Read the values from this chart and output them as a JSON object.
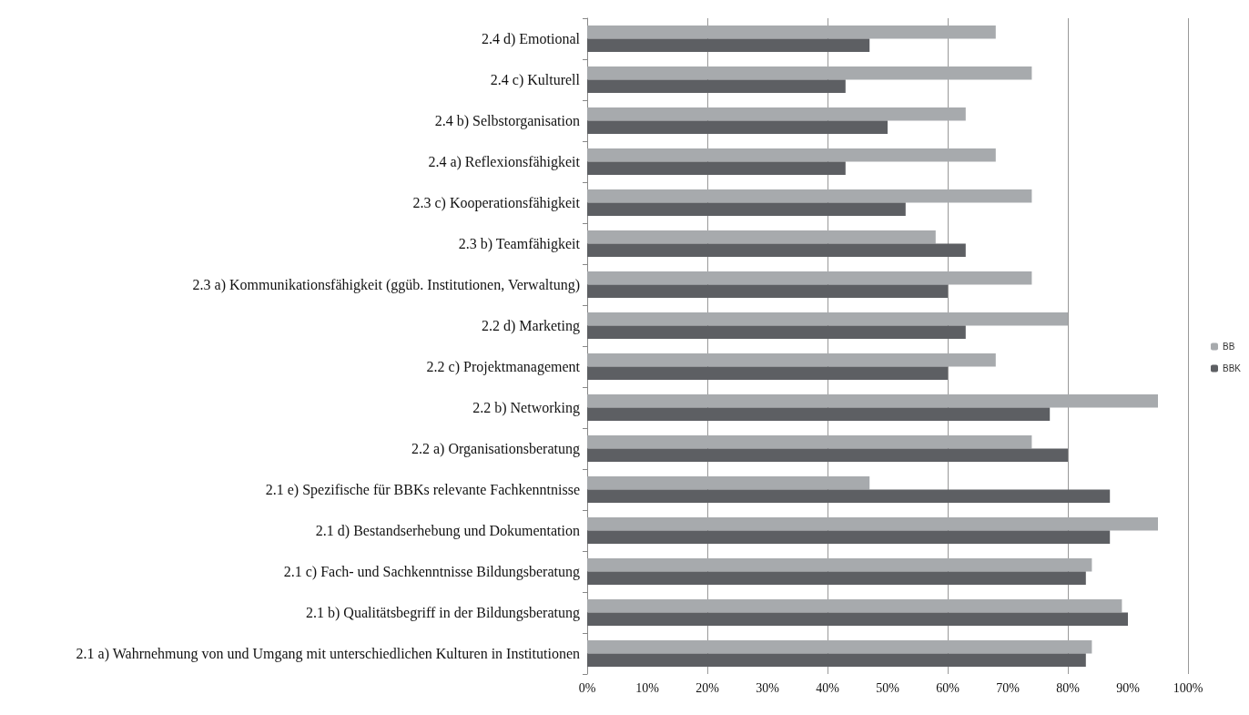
{
  "chart_data": {
    "type": "bar",
    "orientation": "horizontal",
    "categories": [
      "2.4 d) Emotional",
      "2.4 c) Kulturell",
      "2.4 b) Selbstorganisation",
      "2.4 a) Reflexionsfähigkeit",
      "2.3 c) Kooperationsfähigkeit",
      "2.3 b) Teamfähigkeit",
      "2.3 a) Kommunikationsfähigkeit (ggüb. Institutionen, Verwaltung)",
      "2.2 d) Marketing",
      "2.2 c) Projektmanagement",
      "2.2 b) Networking",
      "2.2 a) Organisationsberatung",
      "2.1 e) Spezifische für BBKs relevante Fachkenntnisse",
      "2.1 d) Bestandserhebung und Dokumentation",
      "2.1 c) Fach- und Sachkenntnisse Bildungsberatung",
      "2.1 b) Qualitätsbegriff in der Bildungsberatung",
      "2.1 a) Wahrnehmung von und Umgang mit unterschiedlichen Kulturen in Institutionen"
    ],
    "series": [
      {
        "name": "BB",
        "color": "#a7aaad",
        "values": [
          68,
          74,
          63,
          68,
          74,
          58,
          74,
          80,
          68,
          95,
          74,
          47,
          95,
          84,
          89,
          84
        ]
      },
      {
        "name": "BBK",
        "color": "#5d5f63",
        "values": [
          47,
          43,
          50,
          43,
          53,
          63,
          60,
          63,
          60,
          77,
          80,
          87,
          87,
          83,
          90,
          83
        ]
      }
    ],
    "xlim": [
      0,
      100
    ],
    "xticks": [
      {
        "value": 0,
        "label": "0%"
      },
      {
        "value": 10,
        "label": "10%"
      },
      {
        "value": 20,
        "label": "20%"
      },
      {
        "value": 30,
        "label": "30%"
      },
      {
        "value": 40,
        "label": "40%"
      },
      {
        "value": 50,
        "label": "50%"
      },
      {
        "value": 60,
        "label": "60%"
      },
      {
        "value": 70,
        "label": "70%"
      },
      {
        "value": 80,
        "label": "80%"
      },
      {
        "value": 90,
        "label": "90%"
      },
      {
        "value": 100,
        "label": "100%"
      }
    ],
    "grid": "x",
    "legend": "right"
  }
}
